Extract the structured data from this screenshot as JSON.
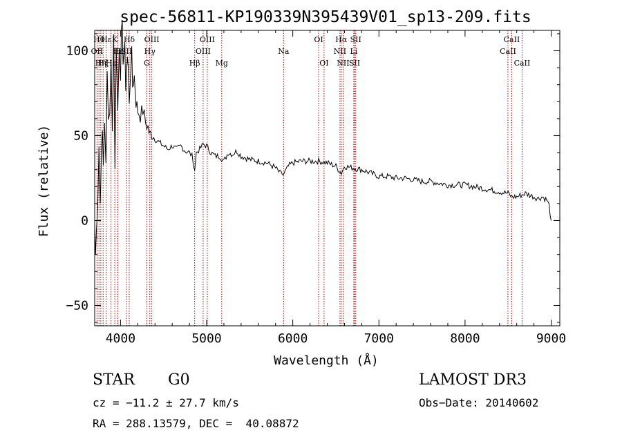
{
  "chart_data": {
    "type": "line",
    "title": "spec-56811-KP190339N395439V01_sp13-209.fits",
    "xlabel": "Wavelength (Å)",
    "ylabel": "Flux (relative)",
    "xlim": [
      3700,
      9100
    ],
    "ylim": [
      -62,
      112
    ],
    "xticks": [
      4000,
      5000,
      6000,
      7000,
      8000,
      9000
    ],
    "yticks": [
      -50,
      0,
      50,
      100
    ],
    "series": [
      {
        "name": "spectrum",
        "x": [
          3700,
          3710,
          3720,
          3735,
          3750,
          3765,
          3780,
          3800,
          3815,
          3830,
          3845,
          3860,
          3875,
          3890,
          3905,
          3920,
          3935,
          3950,
          3968,
          3985,
          4000,
          4020,
          4040,
          4060,
          4080,
          4101,
          4120,
          4140,
          4160,
          4180,
          4200,
          4230,
          4260,
          4290,
          4320,
          4340,
          4360,
          4400,
          4450,
          4500,
          4550,
          4600,
          4650,
          4700,
          4750,
          4800,
          4830,
          4861,
          4880,
          4920,
          4960,
          5000,
          5050,
          5100,
          5150,
          5200,
          5250,
          5300,
          5350,
          5400,
          5450,
          5500,
          5600,
          5700,
          5800,
          5850,
          5893,
          5950,
          6000,
          6100,
          6200,
          6300,
          6400,
          6500,
          6563,
          6600,
          6700,
          6800,
          6900,
          7000,
          7100,
          7200,
          7300,
          7400,
          7500,
          7600,
          7700,
          7800,
          7900,
          8000,
          8100,
          8200,
          8300,
          8400,
          8500,
          8542,
          8600,
          8700,
          8800,
          8850,
          8900,
          8950,
          8975,
          9000
        ],
        "y": [
          -2,
          -22,
          5,
          15,
          45,
          10,
          55,
          30,
          60,
          40,
          80,
          55,
          75,
          95,
          60,
          105,
          40,
          100,
          65,
          110,
          95,
          105,
          100,
          85,
          95,
          75,
          98,
          80,
          85,
          70,
          65,
          62,
          65,
          58,
          55,
          50,
          52,
          48,
          46,
          44,
          42,
          44,
          42,
          44,
          41,
          40,
          38,
          30,
          40,
          42,
          45,
          44,
          40,
          38,
          38,
          35,
          40,
          39,
          41,
          38,
          37,
          36,
          35,
          34,
          31,
          28,
          27,
          32,
          34,
          35,
          35,
          35,
          34,
          32,
          28,
          32,
          31,
          30,
          28,
          26,
          26,
          25,
          25,
          24,
          23,
          23,
          22,
          21,
          21,
          21,
          20,
          19,
          18,
          17,
          16,
          14,
          14,
          16,
          14,
          13,
          14,
          12,
          9,
          0
        ]
      }
    ],
    "lines": [
      {
        "name": "OII",
        "wavelength": 3727,
        "row": 2
      },
      {
        "name": "Hθ",
        "wavelength": 3750,
        "row": 1
      },
      {
        "name": "Hη",
        "wavelength": 3771,
        "row": 3
      },
      {
        "name": "Hζ",
        "wavelength": 3798,
        "row": 3
      },
      {
        "name": "Hε",
        "wavelength": 3835,
        "row": 1
      },
      {
        "name": "Hε",
        "wavelength": 3889,
        "row": 3
      },
      {
        "name": "K",
        "wavelength": 3934,
        "row": 1
      },
      {
        "name": "H",
        "wavelength": 3968,
        "row": 2
      },
      {
        "name": "Hε",
        "wavelength": 3970,
        "row": 2
      },
      {
        "name": "SII",
        "wavelength": 4070,
        "row": 2
      },
      {
        "name": "Hδ",
        "wavelength": 4101,
        "row": 1
      },
      {
        "name": "G",
        "wavelength": 4305,
        "row": 3
      },
      {
        "name": "Hγ",
        "wavelength": 4340,
        "row": 2
      },
      {
        "name": "OIII",
        "wavelength": 4363,
        "row": 1
      },
      {
        "name": "Hβ",
        "wavelength": 4861,
        "row": 3
      },
      {
        "name": "OIII",
        "wavelength": 4959,
        "row": 2
      },
      {
        "name": "OIII",
        "wavelength": 5007,
        "row": 1
      },
      {
        "name": "Mg",
        "wavelength": 5175,
        "row": 3
      },
      {
        "name": "Na",
        "wavelength": 5893,
        "row": 2
      },
      {
        "name": "OI",
        "wavelength": 6300,
        "row": 1
      },
      {
        "name": "OI",
        "wavelength": 6363,
        "row": 3
      },
      {
        "name": "NII",
        "wavelength": 6548,
        "row": 2
      },
      {
        "name": "Hα",
        "wavelength": 6563,
        "row": 1
      },
      {
        "name": "NII",
        "wavelength": 6584,
        "row": 3
      },
      {
        "name": "Li",
        "wavelength": 6708,
        "row": 2
      },
      {
        "name": "SII",
        "wavelength": 6717,
        "row": 3
      },
      {
        "name": "SII",
        "wavelength": 6731,
        "row": 1
      },
      {
        "name": "CaII",
        "wavelength": 8498,
        "row": 2
      },
      {
        "name": "CaII",
        "wavelength": 8542,
        "row": 1
      },
      {
        "name": "CaII",
        "wavelength": 8662,
        "row": 3
      }
    ]
  },
  "info": {
    "object_class": "STAR",
    "subclass": "G0",
    "survey": "LAMOST DR3",
    "redshift_text": "cz = −11.2 ± 27.7 km/s",
    "obs_date_text": "Obs−Date: 20140602",
    "coords_text": "RA = 288.13579, DEC =  40.08872"
  }
}
